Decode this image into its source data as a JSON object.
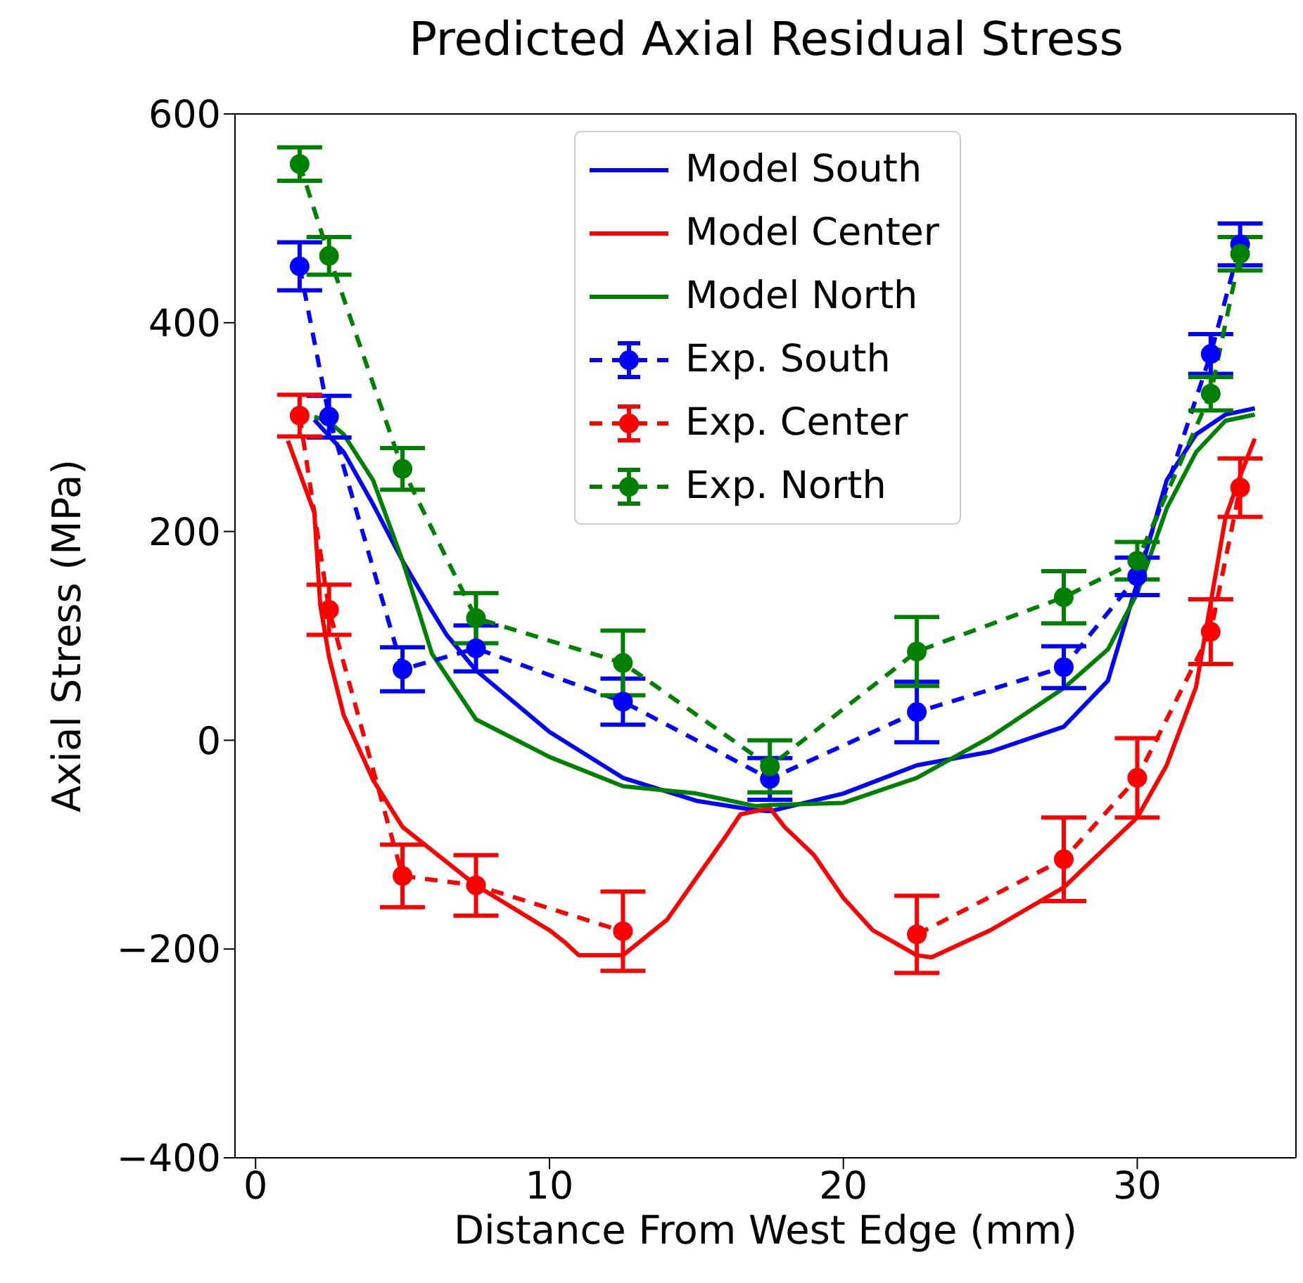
{
  "chart_data": {
    "type": "line",
    "title": "Predicted Axial Residual Stress",
    "xlabel": "Distance From West Edge (mm)",
    "ylabel": "Axial Stress (MPa)",
    "xlim": [
      -0.7,
      35.4
    ],
    "xticks": [
      0,
      10,
      20,
      30
    ],
    "ylim": [
      -400,
      600
    ],
    "yticks": [
      {
        "value": -400,
        "label": "−400"
      },
      {
        "value": -200,
        "label": "−200"
      },
      0,
      200,
      400,
      600
    ],
    "legend": "top",
    "grid": false,
    "series": [
      {
        "name": "Model South",
        "color": "#0000ff",
        "line_style": "solid",
        "marker": "none",
        "x": [
          2,
          3,
          4,
          5,
          6,
          6.5,
          7.5,
          10,
          12.5,
          15,
          17,
          17.5,
          20,
          22.5,
          25,
          27.5,
          29,
          30,
          31,
          32,
          33,
          34
        ],
        "values": [
          307,
          276,
          226,
          172,
          124,
          101,
          67,
          8,
          -36,
          -58,
          -67,
          -68,
          -51,
          -24,
          -11,
          13,
          57,
          151,
          249,
          293,
          312,
          318
        ]
      },
      {
        "name": "Model Center",
        "color": "#ff0000",
        "line_style": "solid",
        "marker": "none",
        "x": [
          1.1,
          2,
          2.2,
          2.5,
          3,
          4,
          5,
          7.5,
          10,
          10.5,
          11,
          12.5,
          14,
          15,
          16,
          16.5,
          17.5,
          18,
          19,
          20,
          21,
          22.5,
          23,
          25,
          27.5,
          30,
          31,
          32,
          33,
          33.5,
          34
        ],
        "values": [
          287,
          218,
          130,
          80,
          24,
          -38,
          -83,
          -139,
          -182,
          -193,
          -206,
          -206,
          -172,
          -132,
          -92,
          -71,
          -65,
          -83,
          -110,
          -151,
          -182,
          -206,
          -208,
          -182,
          -141,
          -74,
          -24,
          51,
          213,
          253,
          289
        ]
      },
      {
        "name": "Model North",
        "color": "#008000",
        "line_style": "solid",
        "marker": "none",
        "x": [
          2,
          2.5,
          3,
          4,
          5,
          5.5,
          6,
          7.5,
          10,
          12.5,
          15,
          17,
          17.5,
          20,
          22.5,
          25,
          27.5,
          29,
          30,
          31,
          32,
          33,
          34
        ],
        "values": [
          310,
          305,
          293,
          249,
          172,
          128,
          83,
          20,
          -16,
          -44,
          -51,
          -63,
          -62,
          -60,
          -36,
          3,
          50,
          87,
          141,
          222,
          276,
          306,
          312
        ]
      },
      {
        "name": "Exp. South",
        "color": "#0000ff",
        "line_style": "dashed",
        "marker": "circle",
        "x": [
          1.5,
          2.5,
          5,
          7.5,
          12.5,
          17.5,
          22.5,
          27.5,
          30,
          32.5,
          33.5
        ],
        "values": [
          454,
          310,
          68,
          88,
          37,
          -37,
          27,
          70,
          157,
          370,
          475
        ],
        "errors": [
          23,
          20,
          21,
          22,
          22,
          20,
          29,
          20,
          18,
          19,
          20
        ]
      },
      {
        "name": "Exp. Center",
        "color": "#ff0000",
        "line_style": "dashed",
        "marker": "circle",
        "x": [
          1.5,
          2.5,
          5,
          7.5,
          12.5,
          17.5,
          22.5,
          27.5,
          30,
          32.5,
          33.5
        ],
        "values": [
          311,
          125,
          -130,
          -139,
          -183,
          null,
          -186,
          -114,
          -36,
          104,
          242
        ],
        "errors": [
          20,
          24,
          30,
          29,
          38,
          null,
          37,
          40,
          38,
          31,
          28
        ]
      },
      {
        "name": "Exp. North",
        "color": "#008000",
        "line_style": "dashed",
        "marker": "circle",
        "x": [
          1.5,
          2.5,
          5,
          7.5,
          12.5,
          17.5,
          22.5,
          27.5,
          30,
          32.5,
          33.5
        ],
        "values": [
          552,
          464,
          260,
          117,
          74,
          -25,
          85,
          137,
          172,
          332,
          466
        ],
        "errors": [
          16,
          18,
          20,
          24,
          31,
          25,
          33,
          25,
          18,
          16,
          16
        ]
      }
    ]
  }
}
